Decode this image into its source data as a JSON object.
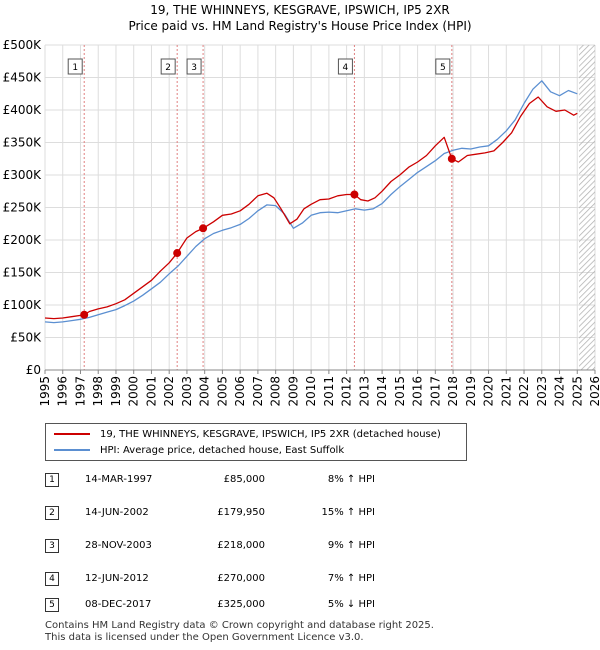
{
  "title_line1": "19, THE WHINNEYS, KESGRAVE, IPSWICH, IP5 2XR",
  "title_line2": "Price paid vs. HM Land Registry's House Price Index (HPI)",
  "colors": {
    "property": "#cc0000",
    "hpi": "#5b8fd1",
    "vline": "#e08080",
    "hatch": "#b0b0b0",
    "grid": "#dddddd"
  },
  "legend": {
    "property_label": "19, THE WHINNEYS, KESGRAVE, IPSWICH, IP5 2XR (detached house)",
    "hpi_label": "HPI: Average price, detached house, East Suffolk"
  },
  "transactions": [
    {
      "num": "1",
      "date": "14-MAR-1997",
      "price": "£85,000",
      "hpi": "8% ↑ HPI"
    },
    {
      "num": "2",
      "date": "14-JUN-2002",
      "price": "£179,950",
      "hpi": "15% ↑ HPI"
    },
    {
      "num": "3",
      "date": "28-NOV-2003",
      "price": "£218,000",
      "hpi": "9% ↑ HPI"
    },
    {
      "num": "4",
      "date": "12-JUN-2012",
      "price": "£270,000",
      "hpi": "7% ↑ HPI"
    },
    {
      "num": "5",
      "date": "08-DEC-2017",
      "price": "£325,000",
      "hpi": "5% ↓ HPI"
    }
  ],
  "footer_line1": "Contains HM Land Registry data © Crown copyright and database right 2025.",
  "footer_line2": "This data is licensed under the Open Government Licence v3.0.",
  "chart_data": {
    "type": "line",
    "title": "19, THE WHINNEYS, KESGRAVE, IPSWICH, IP5 2XR",
    "subtitle": "Price paid vs. HM Land Registry's House Price Index (HPI)",
    "xlabel": "",
    "ylabel": "",
    "xlim": [
      1995,
      2026
    ],
    "ylim": [
      0,
      500000
    ],
    "x_ticks": [
      "1995",
      "1996",
      "1997",
      "1998",
      "1999",
      "2000",
      "2001",
      "2002",
      "2003",
      "2004",
      "2005",
      "2006",
      "2007",
      "2008",
      "2009",
      "2010",
      "2011",
      "2012",
      "2013",
      "2014",
      "2015",
      "2016",
      "2017",
      "2018",
      "2019",
      "2020",
      "2021",
      "2022",
      "2023",
      "2024",
      "2025",
      "2026"
    ],
    "y_ticks": [
      {
        "value": 0,
        "label": "£0"
      },
      {
        "value": 50000,
        "label": "£50K"
      },
      {
        "value": 100000,
        "label": "£100K"
      },
      {
        "value": 150000,
        "label": "£150K"
      },
      {
        "value": 200000,
        "label": "£200K"
      },
      {
        "value": 250000,
        "label": "£250K"
      },
      {
        "value": 300000,
        "label": "£300K"
      },
      {
        "value": 350000,
        "label": "£350K"
      },
      {
        "value": 400000,
        "label": "£400K"
      },
      {
        "value": 450000,
        "label": "£450K"
      },
      {
        "value": 500000,
        "label": "£500K"
      }
    ],
    "forecast_start": 2025.1,
    "series": [
      {
        "name": "19, THE WHINNEYS, KESGRAVE, IPSWICH, IP5 2XR (detached house)",
        "x": [
          1995,
          1995.5,
          1996,
          1996.5,
          1997,
          1997.21,
          1997.5,
          1998,
          1998.5,
          1999,
          1999.5,
          2000,
          2000.5,
          2001,
          2001.5,
          2002,
          2002.45,
          2002.8,
          2003,
          2003.5,
          2003.91,
          2004.5,
          2005,
          2005.5,
          2006,
          2006.5,
          2007,
          2007.5,
          2007.9,
          2008.3,
          2008.8,
          2009.2,
          2009.6,
          2010,
          2010.5,
          2011,
          2011.5,
          2012,
          2012.44,
          2012.8,
          2013.2,
          2013.6,
          2014,
          2014.5,
          2015,
          2015.5,
          2016,
          2016.5,
          2017,
          2017.5,
          2017.93,
          2018.3,
          2018.8,
          2019.3,
          2019.8,
          2020.3,
          2020.8,
          2021.3,
          2021.8,
          2022.3,
          2022.8,
          2023.3,
          2023.8,
          2024.3,
          2024.8,
          2025.0
        ],
        "values": [
          80000,
          79000,
          80000,
          82000,
          84000,
          85000,
          90000,
          94000,
          97000,
          102000,
          108000,
          118000,
          128000,
          138000,
          152000,
          165000,
          179950,
          195000,
          203000,
          213000,
          218000,
          228000,
          238000,
          240000,
          245000,
          255000,
          268000,
          272000,
          265000,
          248000,
          225000,
          232000,
          248000,
          255000,
          262000,
          263000,
          268000,
          270000,
          270000,
          262000,
          260000,
          265000,
          275000,
          290000,
          300000,
          312000,
          320000,
          330000,
          345000,
          358000,
          325000,
          320000,
          330000,
          332000,
          334000,
          337000,
          350000,
          365000,
          390000,
          410000,
          420000,
          405000,
          398000,
          400000,
          392000,
          395000
        ]
      },
      {
        "name": "HPI: Average price, detached house, East Suffolk",
        "x": [
          1995,
          1995.5,
          1996,
          1996.5,
          1997,
          1997.5,
          1998,
          1998.5,
          1999,
          1999.5,
          2000,
          2000.5,
          2001,
          2001.5,
          2002,
          2002.5,
          2003,
          2003.5,
          2004,
          2004.5,
          2005,
          2005.5,
          2006,
          2006.5,
          2007,
          2007.5,
          2008,
          2008.5,
          2009,
          2009.5,
          2010,
          2010.5,
          2011,
          2011.5,
          2012,
          2012.5,
          2013,
          2013.5,
          2014,
          2014.5,
          2015,
          2015.5,
          2016,
          2016.5,
          2017,
          2017.5,
          2018,
          2018.5,
          2019,
          2019.5,
          2020,
          2020.5,
          2021,
          2021.5,
          2022,
          2022.5,
          2023,
          2023.5,
          2024,
          2024.5,
          2025.0
        ],
        "values": [
          74000,
          73000,
          74000,
          76000,
          78000,
          81000,
          85000,
          89000,
          93000,
          99000,
          106000,
          115000,
          125000,
          135000,
          148000,
          160000,
          175000,
          190000,
          202000,
          210000,
          215000,
          219000,
          224000,
          233000,
          245000,
          254000,
          253000,
          240000,
          218000,
          226000,
          238000,
          242000,
          243000,
          242000,
          245000,
          248000,
          246000,
          248000,
          256000,
          270000,
          282000,
          293000,
          304000,
          313000,
          322000,
          333000,
          338000,
          341000,
          340000,
          343000,
          345000,
          355000,
          368000,
          385000,
          410000,
          432000,
          445000,
          428000,
          422000,
          430000,
          425000
        ]
      }
    ],
    "sales": [
      {
        "num": "1",
        "x": 1997.21,
        "value": 85000
      },
      {
        "num": "2",
        "x": 2002.45,
        "value": 179950
      },
      {
        "num": "3",
        "x": 2003.91,
        "value": 218000
      },
      {
        "num": "4",
        "x": 2012.44,
        "value": 270000
      },
      {
        "num": "5",
        "x": 2017.93,
        "value": 325000
      }
    ]
  }
}
